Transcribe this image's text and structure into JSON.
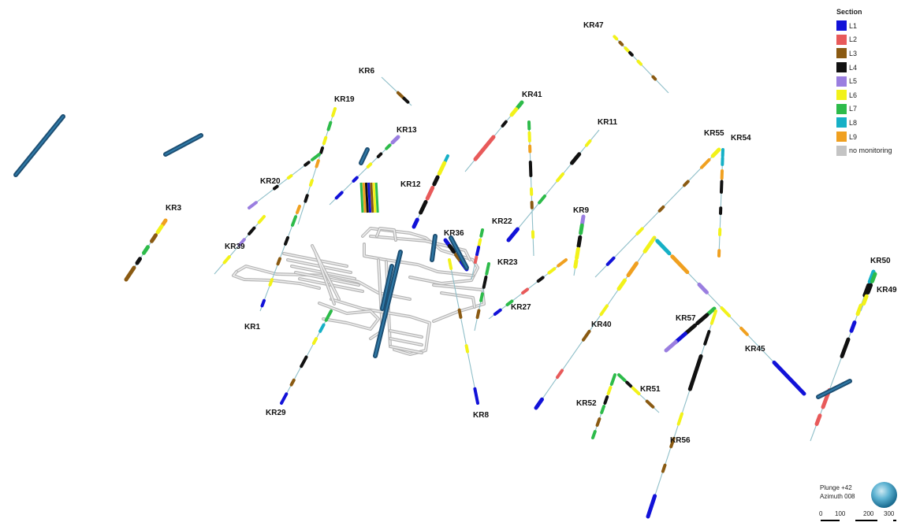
{
  "legend": {
    "title": "Section",
    "items": [
      {
        "label": "L1",
        "color": "#1212d8"
      },
      {
        "label": "L2",
        "color": "#e85a5a"
      },
      {
        "label": "L3",
        "color": "#8a5a12"
      },
      {
        "label": "L4",
        "color": "#111111"
      },
      {
        "label": "L5",
        "color": "#9a7ee0"
      },
      {
        "label": "L6",
        "color": "#f2f21a"
      },
      {
        "label": "L7",
        "color": "#2dbb4a"
      },
      {
        "label": "L8",
        "color": "#16b0c6"
      },
      {
        "label": "L9",
        "color": "#f0a020"
      },
      {
        "label": "no monitoring",
        "color": "#c4c4c4"
      }
    ]
  },
  "orientation": {
    "plunge": "Plunge +42",
    "azimuth": "Azimuth 008"
  },
  "scale": {
    "ticks": [
      "0",
      "100",
      "200",
      "300"
    ]
  },
  "holes": [
    {
      "label": "KR47"
    },
    {
      "label": "KR6"
    },
    {
      "label": "KR19"
    },
    {
      "label": "KR13"
    },
    {
      "label": "KR41"
    },
    {
      "label": "KR11"
    },
    {
      "label": "KR55"
    },
    {
      "label": "KR54"
    },
    {
      "label": "KR20"
    },
    {
      "label": "KR12"
    },
    {
      "label": "KR3"
    },
    {
      "label": "KR9"
    },
    {
      "label": "KR22"
    },
    {
      "label": "KR36"
    },
    {
      "label": "KR39"
    },
    {
      "label": "KR23"
    },
    {
      "label": "KR50"
    },
    {
      "label": "KR49"
    },
    {
      "label": "KR27"
    },
    {
      "label": "KR1"
    },
    {
      "label": "KR40"
    },
    {
      "label": "KR57"
    },
    {
      "label": "KR45"
    },
    {
      "label": "KR51"
    },
    {
      "label": "KR52"
    },
    {
      "label": "KR29"
    },
    {
      "label": "KR8"
    },
    {
      "label": "KR56"
    }
  ]
}
